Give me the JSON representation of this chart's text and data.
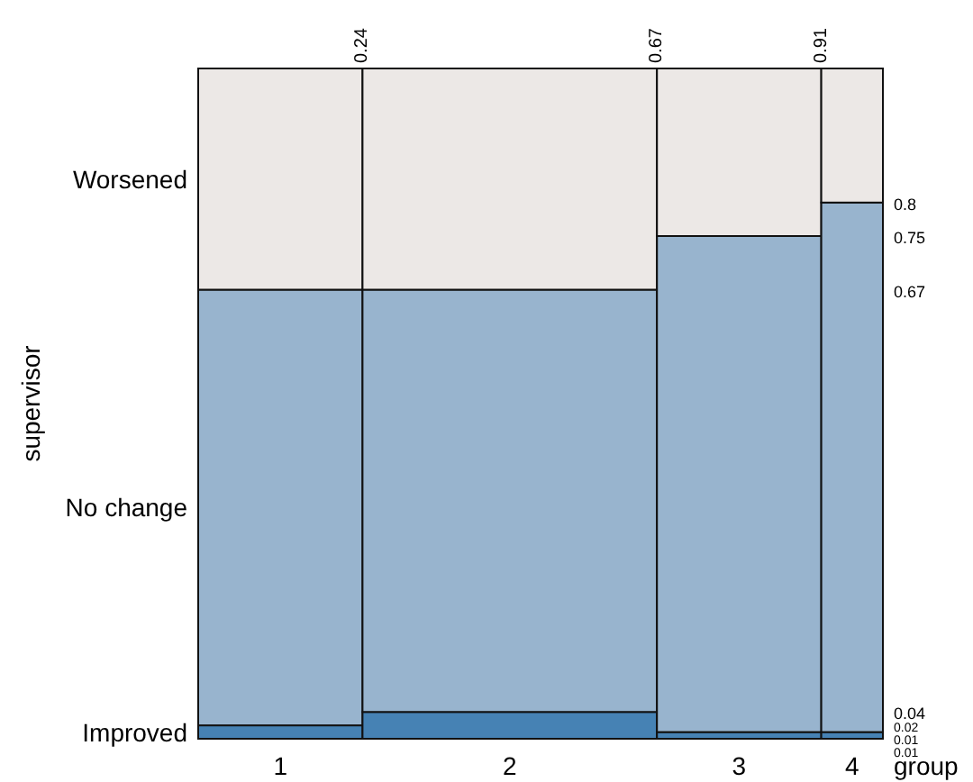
{
  "chart_data": {
    "type": "bar",
    "stacked": true,
    "categories": [
      "1",
      "2",
      "3",
      "4"
    ],
    "xlabel": "group",
    "ylabel": "supervisor",
    "series": [
      {
        "name": "Improved",
        "color": "#4682b4",
        "values": [
          0.02,
          0.04,
          0.01,
          0.01
        ]
      },
      {
        "name": "No change",
        "color": "#98b4ce",
        "values": [
          0.65,
          0.63,
          0.74,
          0.79
        ]
      },
      {
        "name": "Worsened",
        "color": "#ece8e6",
        "values": [
          0.33,
          0.33,
          0.25,
          0.2
        ]
      }
    ],
    "ylim": [
      0,
      1
    ],
    "yticks": [
      0.04,
      0.67,
      0.75,
      0.8
    ],
    "annotations": [
      "0.02",
      "0.01",
      "0.01"
    ],
    "x2lim": [
      0,
      1
    ],
    "x2ticks": [
      0.24,
      0.67,
      0.91
    ],
    "grid": false
  }
}
